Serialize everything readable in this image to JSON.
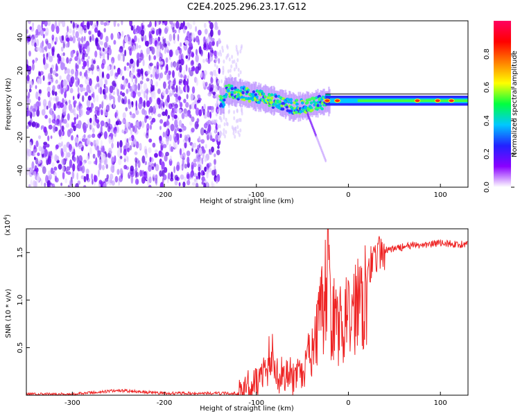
{
  "title": "C2E4.2025.296.23.17.G12",
  "chart_data": [
    {
      "type": "heatmap",
      "xlabel": "Height of straight line (km)",
      "ylabel": "Frequency (Hz)",
      "xlim": [
        -350,
        130
      ],
      "ylim": [
        -50,
        50
      ],
      "xticks": [
        -300,
        -200,
        -100,
        0,
        100
      ],
      "yticks": [
        -40,
        -20,
        0,
        20,
        40
      ],
      "noise_region_x": [
        -350,
        -140
      ],
      "signal_center_hz": [
        [
          -135,
          8
        ],
        [
          -120,
          7
        ],
        [
          -105,
          5
        ],
        [
          -90,
          3
        ],
        [
          -75,
          1
        ],
        [
          -60,
          -2
        ],
        [
          -45,
          -1
        ],
        [
          -30,
          1
        ],
        [
          -15,
          2
        ],
        [
          0,
          1
        ],
        [
          20,
          1
        ],
        [
          60,
          2
        ],
        [
          100,
          2
        ],
        [
          130,
          2
        ]
      ],
      "peak_amplitude_points": [
        [
          -23,
          2
        ],
        [
          -12,
          2
        ],
        [
          75,
          2
        ],
        [
          97,
          2
        ],
        [
          112,
          2
        ]
      ],
      "colorbar": {
        "label": "Normalized spectral amplitude",
        "ticks": [
          "0.0",
          "0.2",
          "0.4",
          "0.6",
          "0.8"
        ],
        "range": [
          0,
          1
        ],
        "colors": [
          "#ffffff",
          "#8a00ff",
          "#2222ff",
          "#00c8ff",
          "#00ff40",
          "#ffff00",
          "#ff8000",
          "#ff0000",
          "#ff0060"
        ]
      }
    },
    {
      "type": "line",
      "xlabel": "Height of straight line (km)",
      "ylabel": "SNR (10 * v/v)",
      "y_multiplier": "(x10",
      "y_multiplier_exp": "4",
      "y_multiplier_close": ")",
      "xlim": [
        -350,
        130
      ],
      "ylim": [
        0,
        1.75
      ],
      "xticks": [
        -300,
        -200,
        -100,
        0,
        100
      ],
      "yticks": [
        "0.5",
        "1.0",
        "1.5"
      ],
      "line_color": "#ee2222",
      "series": [
        {
          "x": [
            -350,
            -300,
            -250,
            -200,
            -150,
            -120,
            -110,
            -100,
            -90,
            -85,
            -80,
            -75,
            -70,
            -60,
            -50,
            -45,
            -40,
            -35,
            -30,
            -25,
            -22,
            -20,
            -18,
            -15,
            -10,
            -5,
            0,
            5,
            10,
            20,
            30,
            40,
            60,
            80,
            100,
            130
          ],
          "values": [
            0.01,
            0.01,
            0.05,
            0.02,
            0.02,
            0.02,
            0.1,
            0.15,
            0.25,
            0.45,
            0.32,
            0.2,
            0.25,
            0.18,
            0.2,
            0.35,
            0.5,
            0.7,
            0.95,
            1.3,
            1.6,
            1.1,
            1.0,
            0.9,
            0.85,
            0.9,
            0.95,
            1.05,
            1.2,
            1.35,
            1.45,
            1.52,
            1.56,
            1.58,
            1.6,
            1.58
          ]
        }
      ]
    }
  ]
}
